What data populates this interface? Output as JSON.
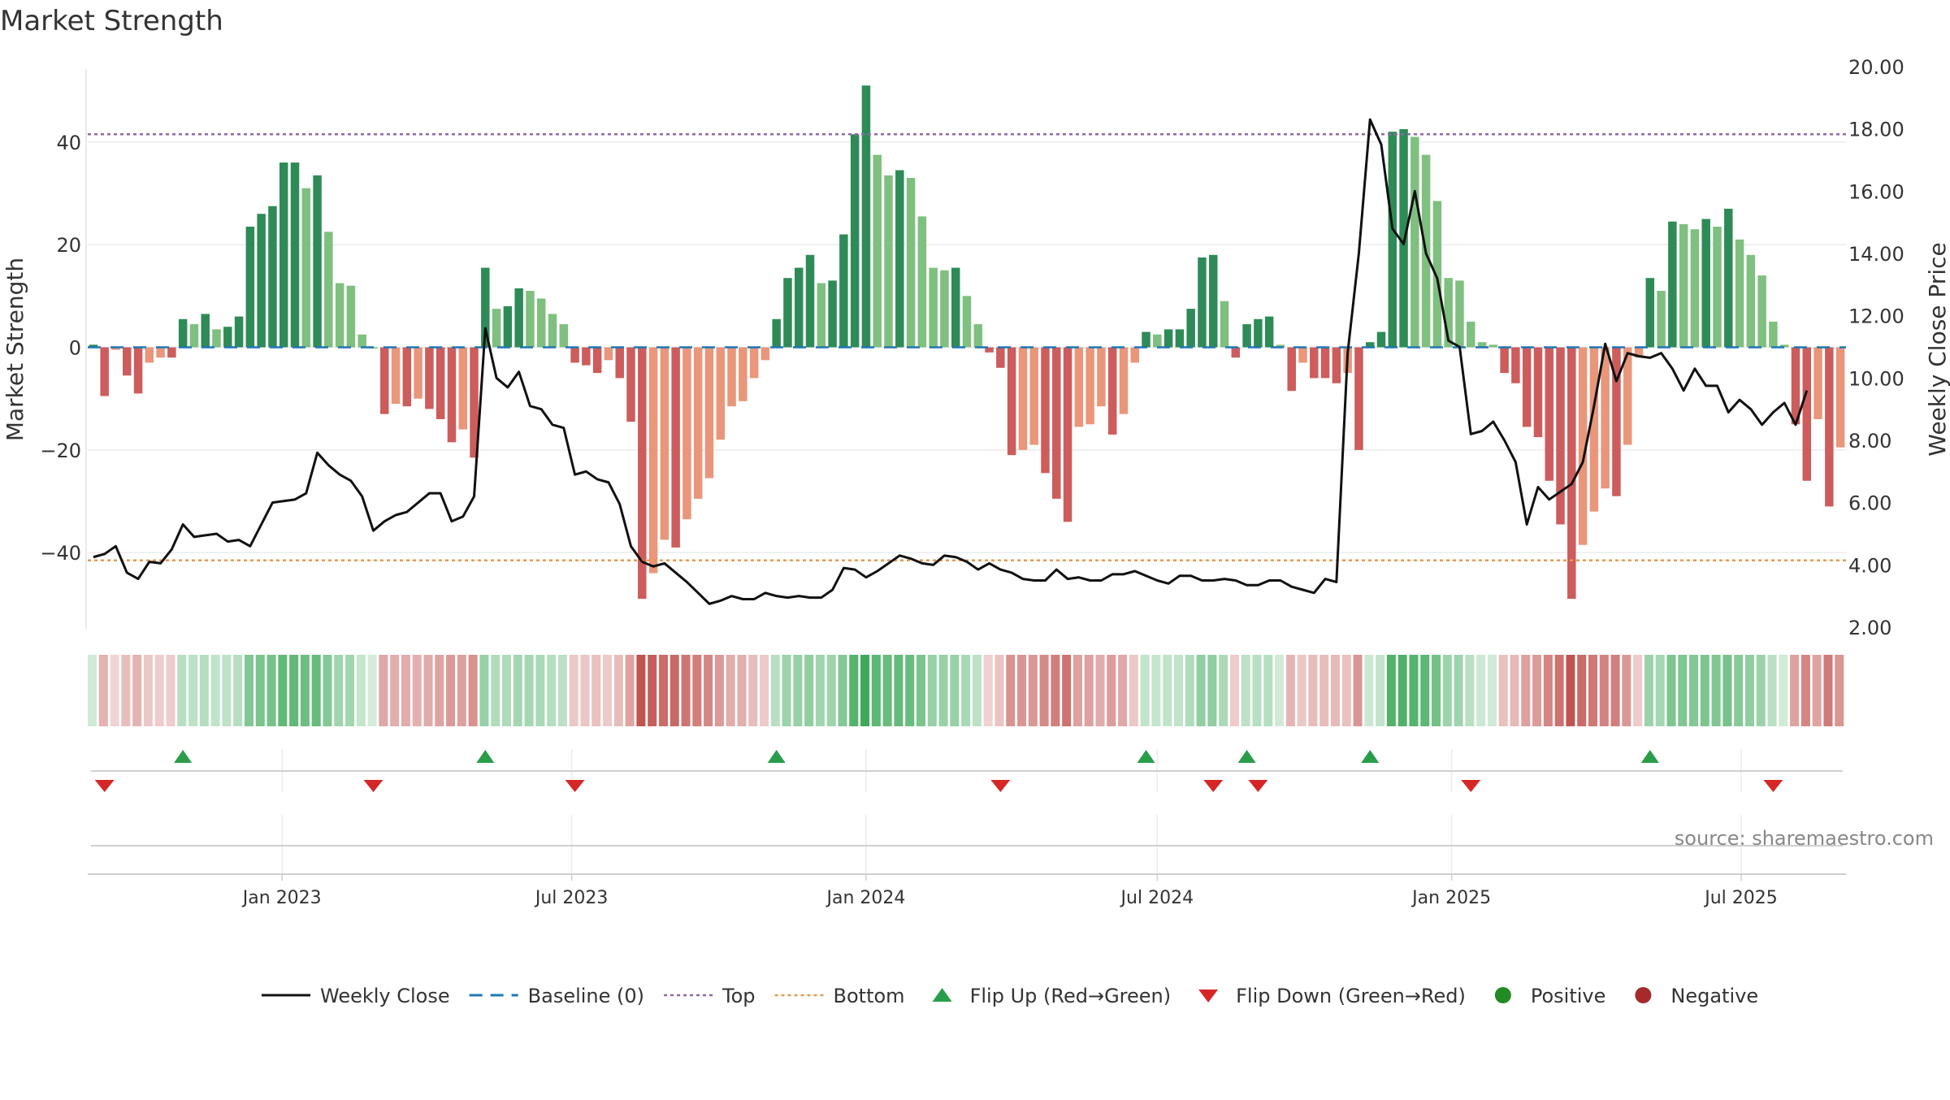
{
  "chart_data": {
    "type": "bar",
    "title": "Market Strength",
    "source": "source: sharemaestro.com",
    "left_axis": {
      "label": "Market Strength",
      "ylim": [
        -55,
        55
      ],
      "ticks": [
        40,
        20,
        0,
        -20,
        -40
      ],
      "tick_labels": [
        "40",
        "20",
        "0",
        "−20",
        "−40"
      ]
    },
    "right_axis": {
      "label": "Weekly Close Price",
      "ylim": [
        2.0,
        20.0
      ],
      "ticks": [
        20,
        18,
        16,
        14,
        12,
        10,
        8,
        6,
        4,
        2
      ],
      "tick_labels": [
        "20.00",
        "18.00",
        "16.00",
        "14.00",
        "12.00",
        "10.00",
        "8.00",
        "6.00",
        "4.00",
        "2.00"
      ]
    },
    "x_axis": {
      "start": "2022-09-05",
      "interval_days": 7,
      "tick_dates": [
        "2023-01-01",
        "2023-07-01",
        "2024-01-01",
        "2024-07-01",
        "2025-01-01",
        "2025-07-01"
      ],
      "tick_labels": [
        "Jan 2023",
        "Jul 2023",
        "Jan 2024",
        "Jul 2024",
        "Jan 2025",
        "Jul 2025"
      ]
    },
    "top_level": 41.5,
    "bottom_level": -41.5,
    "baseline": 0,
    "series": [
      {
        "name": "Market Strength",
        "values": [
          0.5,
          -9.5,
          -0.5,
          -5.5,
          -9,
          -3,
          -2,
          -2,
          5.5,
          4.5,
          6.5,
          3.5,
          4,
          6,
          23.5,
          26,
          27.5,
          36,
          36,
          31,
          33.5,
          22.5,
          12.5,
          12,
          2.5,
          0,
          -13,
          -11,
          -11.5,
          -10,
          -12,
          -14,
          -18.5,
          -16,
          -21.5,
          15.5,
          7.5,
          8,
          11.5,
          11,
          9.5,
          6.5,
          4.5,
          -3,
          -3.5,
          -5,
          -2.5,
          -6,
          -14.5,
          -49,
          -44,
          -37.5,
          -39,
          -33.5,
          -29.5,
          -25.5,
          -18,
          -11.5,
          -10.5,
          -6,
          -2.5,
          5.5,
          13.5,
          15.5,
          18,
          12.5,
          13,
          22,
          41.5,
          51,
          37.5,
          33.5,
          34.5,
          33,
          25.5,
          15.5,
          15,
          15.5,
          10,
          4.5,
          -1,
          -4,
          -21,
          -20,
          -19,
          -24.5,
          -29.5,
          -34,
          -15.5,
          -15,
          -11.5,
          -17,
          -13,
          -3,
          3,
          2.5,
          3.5,
          3.5,
          7.5,
          17.5,
          18,
          9,
          -2,
          4.5,
          5.5,
          6,
          0.5,
          -8.5,
          -3,
          -6,
          -6,
          -7,
          -5,
          -20,
          1,
          3,
          42,
          42.5,
          41,
          37.5,
          28.5,
          13.5,
          13,
          5,
          1,
          0.5,
          -5,
          -7,
          -15.5,
          -17.5,
          -26,
          -34.5,
          -49,
          -38.5,
          -32,
          -27.5,
          -29,
          -19,
          -2,
          13.5,
          11,
          24.5,
          24,
          23,
          25,
          23.5,
          27,
          21,
          18,
          14,
          5,
          0.5,
          -15,
          -26,
          -14,
          -31,
          -19.5
        ]
      },
      {
        "name": "Weekly Close",
        "values": [
          4.25,
          4.35,
          4.6,
          3.75,
          3.55,
          4.1,
          4.05,
          4.5,
          5.3,
          4.9,
          4.95,
          5.0,
          4.75,
          4.8,
          4.6,
          5.3,
          6.0,
          6.05,
          6.1,
          6.3,
          7.6,
          7.2,
          6.9,
          6.7,
          6.2,
          5.1,
          5.4,
          5.6,
          5.7,
          6.0,
          6.3,
          6.3,
          5.4,
          5.55,
          6.2,
          11.6,
          10.0,
          9.7,
          10.2,
          9.1,
          9.0,
          8.5,
          8.4,
          6.9,
          7.0,
          6.75,
          6.65,
          5.95,
          4.6,
          4.1,
          3.95,
          4.05,
          3.75,
          3.45,
          3.1,
          2.75,
          2.85,
          3.0,
          2.9,
          2.9,
          3.1,
          3.0,
          2.95,
          3.0,
          2.95,
          2.95,
          3.2,
          3.9,
          3.85,
          3.6,
          3.8,
          4.05,
          4.3,
          4.2,
          4.05,
          4.0,
          4.3,
          4.25,
          4.1,
          3.85,
          4.05,
          3.85,
          3.75,
          3.55,
          3.5,
          3.5,
          3.85,
          3.55,
          3.6,
          3.5,
          3.5,
          3.7,
          3.7,
          3.8,
          3.65,
          3.5,
          3.4,
          3.65,
          3.65,
          3.5,
          3.5,
          3.55,
          3.5,
          3.35,
          3.35,
          3.5,
          3.5,
          3.3,
          3.2,
          3.1,
          3.55,
          3.45,
          10.8,
          14.0,
          18.3,
          17.5,
          14.8,
          14.3,
          16.0,
          14.0,
          13.2,
          11.2,
          11.0,
          8.2,
          8.3,
          8.6,
          8.0,
          7.3,
          5.3,
          6.5,
          6.1,
          6.35,
          6.6,
          7.3,
          9.1,
          11.1,
          9.9,
          10.8,
          10.7,
          10.65,
          10.8,
          10.3,
          9.6,
          10.3,
          9.75,
          9.75,
          8.9,
          9.3,
          9.0,
          8.5,
          8.9,
          9.2,
          8.5,
          9.6
        ]
      }
    ],
    "flip_up_indices": [
      8,
      35,
      61,
      94,
      103,
      114,
      139
    ],
    "flip_down_indices": [
      1,
      25,
      43,
      81,
      100,
      104,
      123,
      150
    ],
    "colors": {
      "pos_strong": "#2e8b57",
      "pos_light": "#7fbf7f",
      "neg_strong": "#cd5c5c",
      "neg_light": "#e9967a",
      "close_line": "#111111",
      "baseline": "#1f77b4",
      "top": "#8e6aa8",
      "bottom": "#e69a52",
      "flip_up": "#2a9d4a",
      "flip_down": "#d62728",
      "positive": "#228b22",
      "negative": "#a52a2a"
    },
    "legend": [
      {
        "label": "Weekly Close",
        "kind": "line",
        "color": "#111111"
      },
      {
        "label": "Baseline (0)",
        "kind": "dash",
        "color": "#1f77b4"
      },
      {
        "label": "Top",
        "kind": "dot",
        "color": "#8e6aa8"
      },
      {
        "label": "Bottom",
        "kind": "dot",
        "color": "#e69a52"
      },
      {
        "label": "Flip Up (Red→Green)",
        "kind": "tri-up",
        "color": "#2a9d4a"
      },
      {
        "label": "Flip Down (Green→Red)",
        "kind": "tri-down",
        "color": "#d62728"
      },
      {
        "label": "Positive",
        "kind": "circle",
        "color": "#228b22"
      },
      {
        "label": "Negative",
        "kind": "circle",
        "color": "#a52a2a"
      }
    ]
  }
}
